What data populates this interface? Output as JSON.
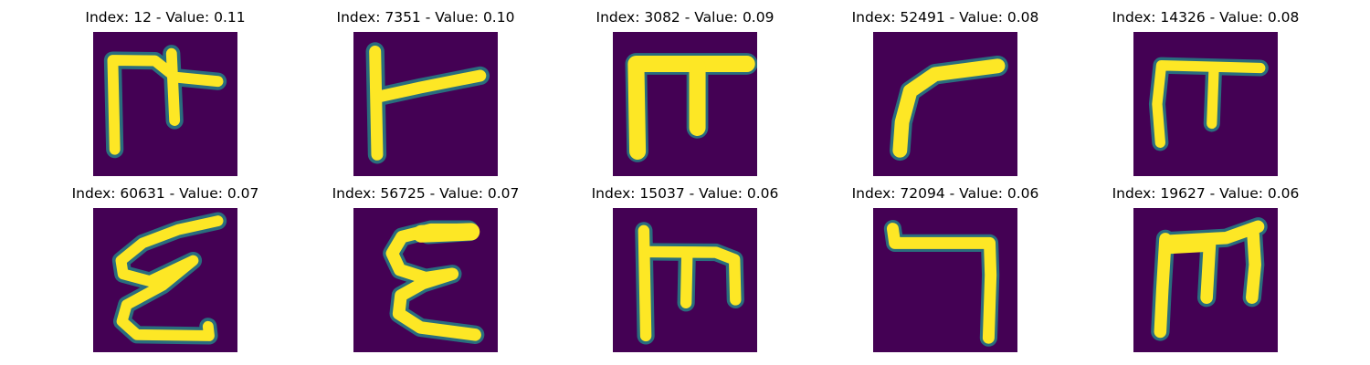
{
  "figure": {
    "colors": {
      "background": "#440154",
      "mid": "#21918c",
      "stroke": "#fde725"
    },
    "panels": [
      {
        "title": "Index: 12 - Value: 0.11",
        "content": "handwritten glyph resembling a tau-like character"
      },
      {
        "title": "Index: 7351 - Value: 0.10",
        "content": "handwritten glyph resembling a vertical bar with a rising arm"
      },
      {
        "title": "Index: 3082 - Value: 0.09",
        "content": "handwritten glyph resembling a pi/tau character"
      },
      {
        "title": "Index: 52491 - Value: 0.08",
        "content": "handwritten glyph resembling a gamma-like character"
      },
      {
        "title": "Index: 14326 - Value: 0.08",
        "content": "handwritten glyph resembling a pi-like character"
      },
      {
        "title": "Index: 60631 - Value: 0.07",
        "content": "handwritten glyph resembling a xi-like squiggle"
      },
      {
        "title": "Index: 56725 - Value: 0.07",
        "content": "handwritten glyph resembling an epsilon/xi character"
      },
      {
        "title": "Index: 15037 - Value: 0.06",
        "content": "handwritten glyph resembling an m-like character"
      },
      {
        "title": "Index: 72094 - Value: 0.06",
        "content": "handwritten glyph resembling a reversed L / right angle"
      },
      {
        "title": "Index: 19627 - Value: 0.06",
        "content": "handwritten glyph resembling an m-like character"
      }
    ]
  }
}
